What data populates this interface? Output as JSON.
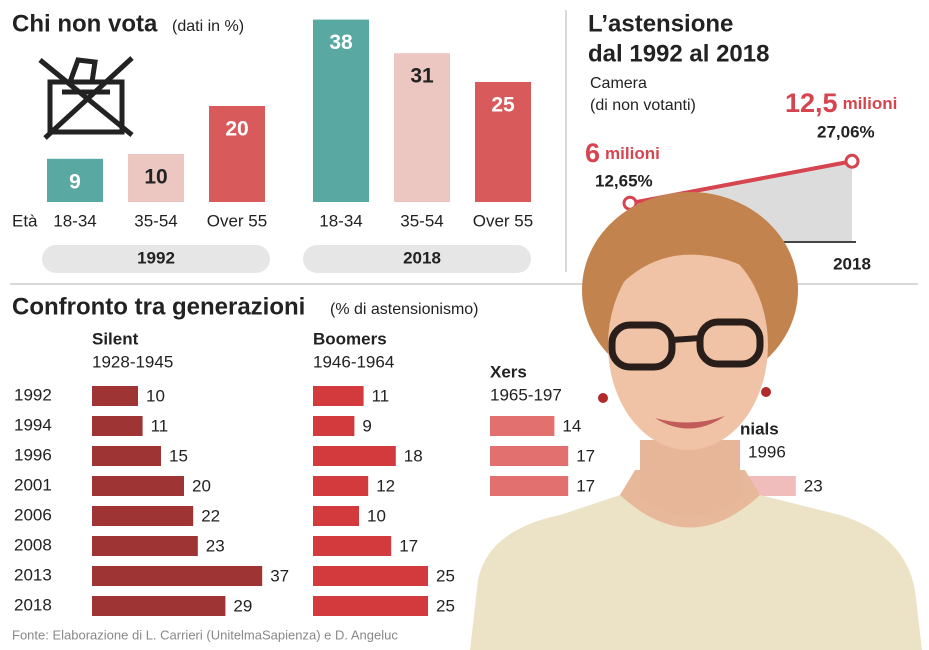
{
  "chart_data": [
    {
      "type": "bar",
      "title": "Chi non vota",
      "subtitle": "(dati in %)",
      "x_label": "Età",
      "categories": [
        "18-34",
        "35-54",
        "Over 55"
      ],
      "colors": [
        "#5aa8a2",
        "#ecc7c1",
        "#d85a5a"
      ],
      "series": [
        {
          "name": "1992",
          "values": [
            9,
            10,
            20
          ]
        },
        {
          "name": "2018",
          "values": [
            38,
            31,
            25
          ]
        }
      ]
    },
    {
      "type": "line",
      "title": [
        "L’astensione",
        "dal 1992 al 2018"
      ],
      "subtitle": [
        "Camera",
        "(di non votanti)"
      ],
      "categories": [
        null,
        "2018"
      ],
      "values": [
        12.65,
        27.06
      ],
      "value_labels": [
        "12,65%",
        "27,06%"
      ],
      "annotations": [
        {
          "value": "6",
          "unit": "milioni"
        },
        {
          "value": "12,5",
          "unit": "milioni"
        }
      ],
      "color": "#d6454f"
    },
    {
      "type": "bar",
      "orientation": "horizontal",
      "title": "Confronto tra generazioni",
      "subtitle": "(% di astensionismo)",
      "categories": [
        "1992",
        "1994",
        "1996",
        "2001",
        "2006",
        "2008",
        "2013",
        "2018"
      ],
      "series": [
        {
          "name": "Silent",
          "period": "1928-1945",
          "color": "#9e3434",
          "values": [
            10,
            11,
            15,
            20,
            22,
            23,
            37,
            29
          ]
        },
        {
          "name": "Boomers",
          "period": "1946-1964",
          "color": "#d33a3d",
          "values": [
            11,
            9,
            18,
            12,
            10,
            17,
            25,
            25
          ]
        },
        {
          "name": "Xers",
          "period": "1965-197",
          "color": "#e2706f",
          "values": [
            null,
            14,
            17,
            17,
            null,
            null,
            null,
            null
          ]
        },
        {
          "name": "nials",
          "period": "1996",
          "color": "#f1bcbc",
          "values": [
            null,
            null,
            null,
            23,
            null,
            null,
            null,
            null
          ]
        }
      ]
    }
  ],
  "source": "Fonte: Elaborazione di L. Carrieri (UnitelmaSapienza) e D. Angeluc"
}
